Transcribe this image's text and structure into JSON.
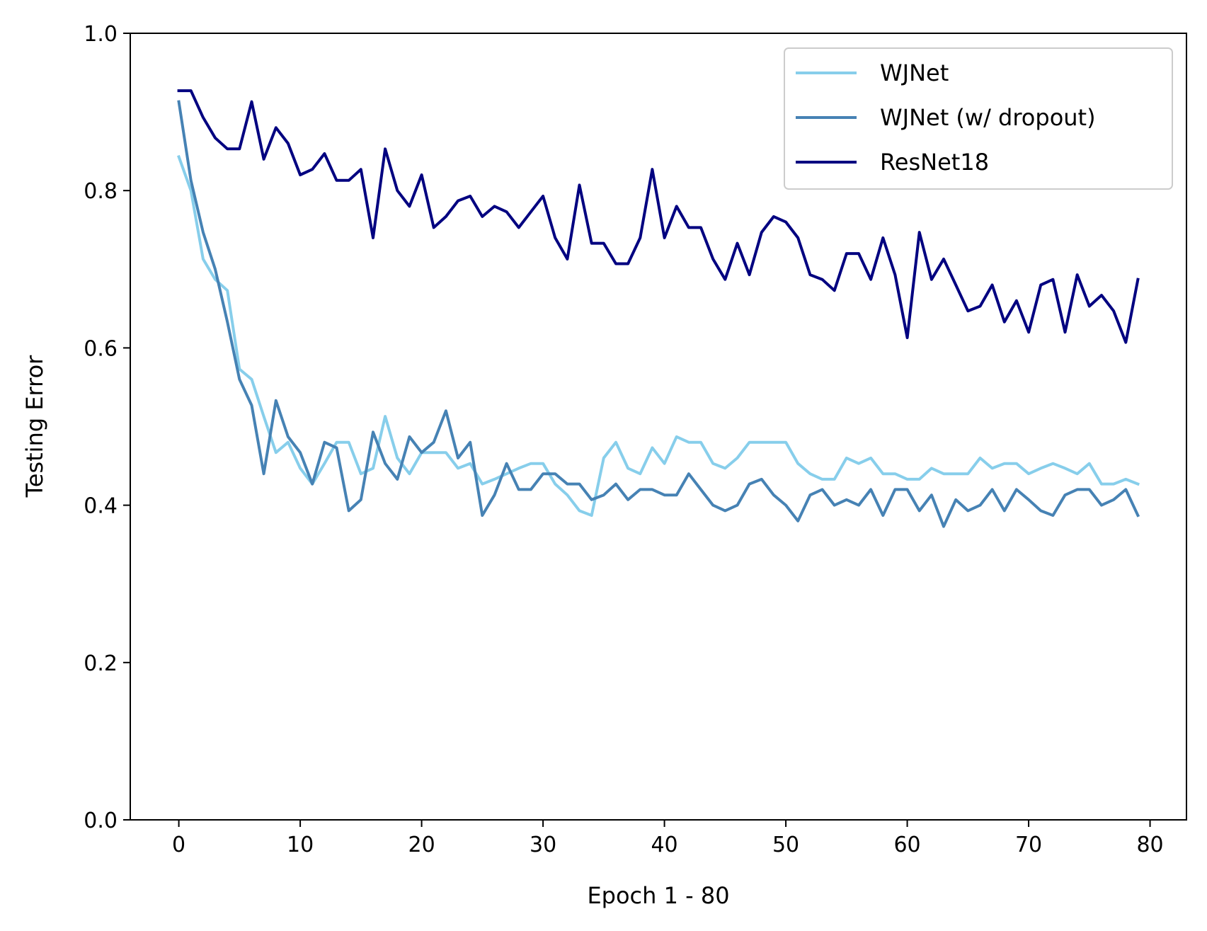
{
  "chart_data": {
    "type": "line",
    "title": "",
    "xlabel": "Epoch 1 - 80",
    "ylabel": "Testing Error",
    "xlim": [
      -4,
      83
    ],
    "ylim": [
      0.0,
      1.0
    ],
    "xticks": [
      0,
      10,
      20,
      30,
      40,
      50,
      60,
      70,
      80
    ],
    "xtick_labels": [
      "0",
      "10",
      "20",
      "30",
      "40",
      "50",
      "60",
      "70",
      "80"
    ],
    "yticks": [
      0.0,
      0.2,
      0.4,
      0.6,
      0.8,
      1.0
    ],
    "ytick_labels": [
      "0.0",
      "0.2",
      "0.4",
      "0.6",
      "0.8",
      "1.0"
    ],
    "grid": false,
    "legend_position": "top-right",
    "x": [
      0,
      1,
      2,
      3,
      4,
      5,
      6,
      7,
      8,
      9,
      10,
      11,
      12,
      13,
      14,
      15,
      16,
      17,
      18,
      19,
      20,
      21,
      22,
      23,
      24,
      25,
      26,
      27,
      28,
      29,
      30,
      31,
      32,
      33,
      34,
      35,
      36,
      37,
      38,
      39,
      40,
      41,
      42,
      43,
      44,
      45,
      46,
      47,
      48,
      49,
      50,
      51,
      52,
      53,
      54,
      55,
      56,
      57,
      58,
      59,
      60,
      61,
      62,
      63,
      64,
      65,
      66,
      67,
      68,
      69,
      70,
      71,
      72,
      73,
      74,
      75,
      76,
      77,
      78,
      79
    ],
    "series": [
      {
        "name": "WJNet",
        "color": "#87ceeb",
        "values": [
          0.843,
          0.8,
          0.713,
          0.687,
          0.673,
          0.573,
          0.56,
          0.513,
          0.467,
          0.48,
          0.447,
          0.427,
          0.453,
          0.48,
          0.48,
          0.44,
          0.447,
          0.513,
          0.46,
          0.44,
          0.467,
          0.467,
          0.467,
          0.447,
          0.453,
          0.427,
          0.433,
          0.44,
          0.447,
          0.453,
          0.453,
          0.427,
          0.413,
          0.393,
          0.387,
          0.46,
          0.48,
          0.447,
          0.44,
          0.473,
          0.453,
          0.487,
          0.48,
          0.48,
          0.453,
          0.447,
          0.46,
          0.48,
          0.48,
          0.48,
          0.48,
          0.453,
          0.44,
          0.433,
          0.433,
          0.46,
          0.453,
          0.46,
          0.44,
          0.44,
          0.433,
          0.433,
          0.447,
          0.44,
          0.44,
          0.44,
          0.46,
          0.447,
          0.453,
          0.453,
          0.44,
          0.447,
          0.453,
          0.447,
          0.44,
          0.453,
          0.427,
          0.427,
          0.433,
          0.427
        ]
      },
      {
        "name": "WJNet (w/ dropout)",
        "color": "#4682b4",
        "values": [
          0.913,
          0.813,
          0.747,
          0.7,
          0.633,
          0.56,
          0.527,
          0.44,
          0.533,
          0.487,
          0.467,
          0.427,
          0.48,
          0.473,
          0.393,
          0.407,
          0.493,
          0.453,
          0.433,
          0.487,
          0.467,
          0.48,
          0.52,
          0.46,
          0.48,
          0.387,
          0.413,
          0.453,
          0.42,
          0.42,
          0.44,
          0.44,
          0.427,
          0.427,
          0.407,
          0.413,
          0.427,
          0.407,
          0.42,
          0.42,
          0.413,
          0.413,
          0.44,
          0.42,
          0.4,
          0.393,
          0.4,
          0.427,
          0.433,
          0.413,
          0.4,
          0.38,
          0.413,
          0.42,
          0.4,
          0.407,
          0.4,
          0.42,
          0.387,
          0.42,
          0.42,
          0.393,
          0.413,
          0.373,
          0.407,
          0.393,
          0.4,
          0.42,
          0.393,
          0.42,
          0.407,
          0.393,
          0.387,
          0.413,
          0.42,
          0.42,
          0.4,
          0.407,
          0.42,
          0.387
        ]
      },
      {
        "name": "ResNet18",
        "color": "#000080",
        "values": [
          0.927,
          0.927,
          0.893,
          0.867,
          0.853,
          0.853,
          0.913,
          0.84,
          0.88,
          0.86,
          0.82,
          0.827,
          0.847,
          0.813,
          0.813,
          0.827,
          0.74,
          0.853,
          0.8,
          0.78,
          0.82,
          0.753,
          0.767,
          0.787,
          0.793,
          0.767,
          0.78,
          0.773,
          0.753,
          0.773,
          0.793,
          0.74,
          0.713,
          0.807,
          0.733,
          0.733,
          0.707,
          0.707,
          0.74,
          0.827,
          0.74,
          0.78,
          0.753,
          0.753,
          0.713,
          0.687,
          0.733,
          0.693,
          0.747,
          0.767,
          0.76,
          0.74,
          0.693,
          0.687,
          0.673,
          0.72,
          0.72,
          0.687,
          0.74,
          0.693,
          0.613,
          0.747,
          0.687,
          0.713,
          0.68,
          0.647,
          0.653,
          0.68,
          0.633,
          0.66,
          0.62,
          0.68,
          0.687,
          0.62,
          0.693,
          0.653,
          0.667,
          0.647,
          0.607,
          0.687
        ]
      }
    ]
  }
}
